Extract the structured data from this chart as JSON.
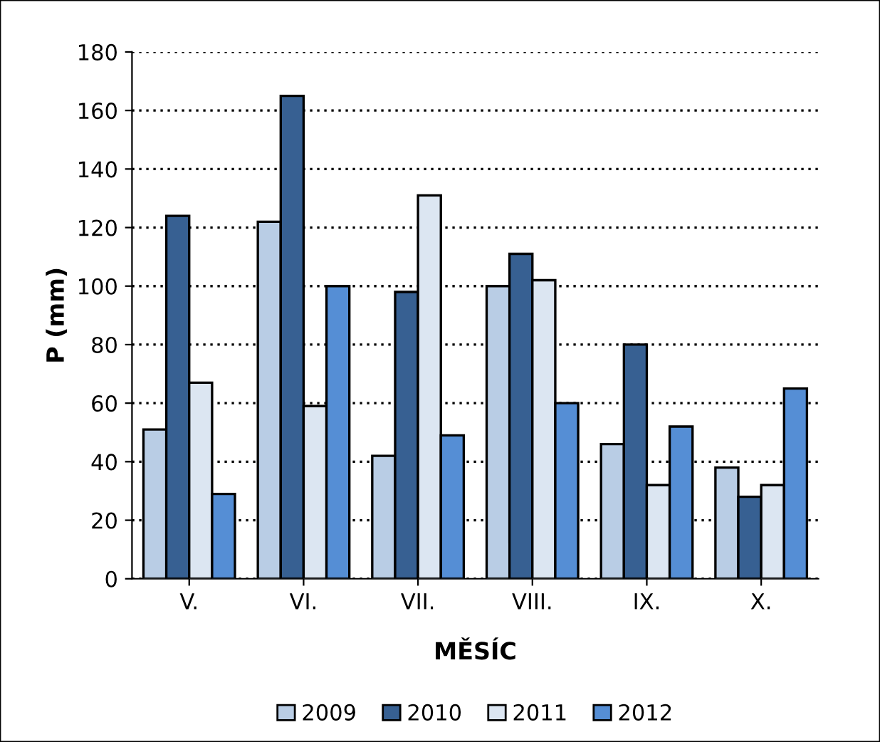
{
  "chart_data": {
    "type": "bar",
    "xlabel": "MĚSÍC",
    "ylabel": "P (mm)",
    "categories": [
      "V.",
      "VI.",
      "VII.",
      "VIII.",
      "IX.",
      "X."
    ],
    "series": [
      {
        "name": "2009",
        "color": "#b9cde5",
        "values": [
          51,
          122,
          42,
          100,
          46,
          38
        ]
      },
      {
        "name": "2010",
        "color": "#376092",
        "values": [
          124,
          165,
          98,
          111,
          80,
          28
        ]
      },
      {
        "name": "2011",
        "color": "#dce6f2",
        "values": [
          67,
          59,
          131,
          102,
          32,
          32
        ]
      },
      {
        "name": "2012",
        "color": "#558ed5",
        "values": [
          29,
          100,
          49,
          60,
          52,
          65
        ]
      }
    ],
    "ylim": [
      0,
      180
    ],
    "yticks": [
      0,
      20,
      40,
      60,
      80,
      100,
      120,
      140,
      160,
      180
    ],
    "grid": "y",
    "legend": "bottom"
  }
}
